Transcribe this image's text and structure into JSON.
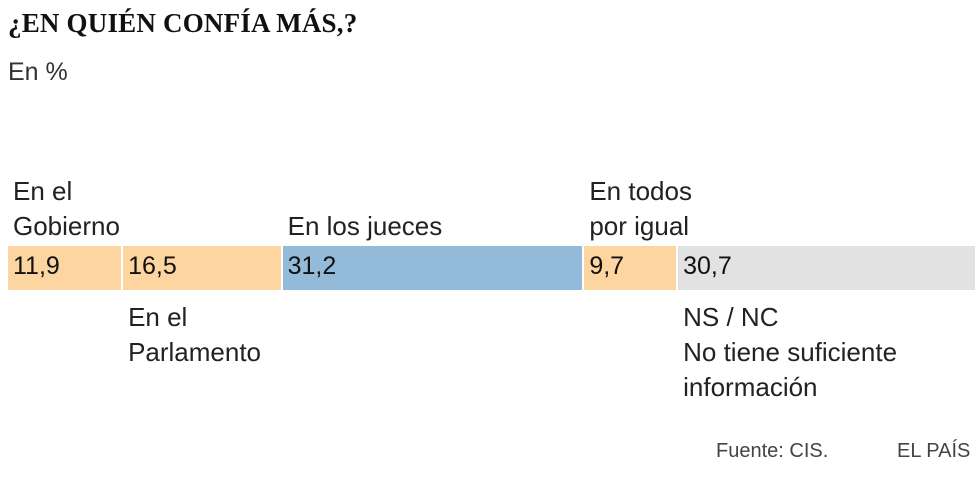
{
  "chart_data": {
    "type": "bar",
    "orientation": "horizontal-stacked",
    "title": "¿EN QUIÉN CONFÍA MÁS,?",
    "subtitle": "En %",
    "categories": [
      "En el Gobierno",
      "En el Parlamento",
      "En los jueces",
      "En todos por igual",
      "NS / NC No tiene suficiente información"
    ],
    "values": [
      11.9,
      16.5,
      31.2,
      9.7,
      30.7
    ],
    "value_labels": [
      "11,9",
      "16,5",
      "31,2",
      "9,7",
      "30,7"
    ],
    "label_lines": [
      [
        "En el",
        "Gobierno"
      ],
      [
        "En el",
        "Parlamento"
      ],
      [
        "En los jueces"
      ],
      [
        "En todos",
        "por igual"
      ],
      [
        "NS / NC",
        "No tiene suficiente",
        "información"
      ]
    ],
    "label_position": [
      "above",
      "below",
      "above",
      "above",
      "below"
    ],
    "colors": [
      "#fdd5a0",
      "#fdd5a0",
      "#94bad9",
      "#fdd5a0",
      "#e2e2e2"
    ],
    "total": 100
  },
  "footer": {
    "source": "Fuente: CIS.",
    "brand": "EL PAÍS"
  }
}
